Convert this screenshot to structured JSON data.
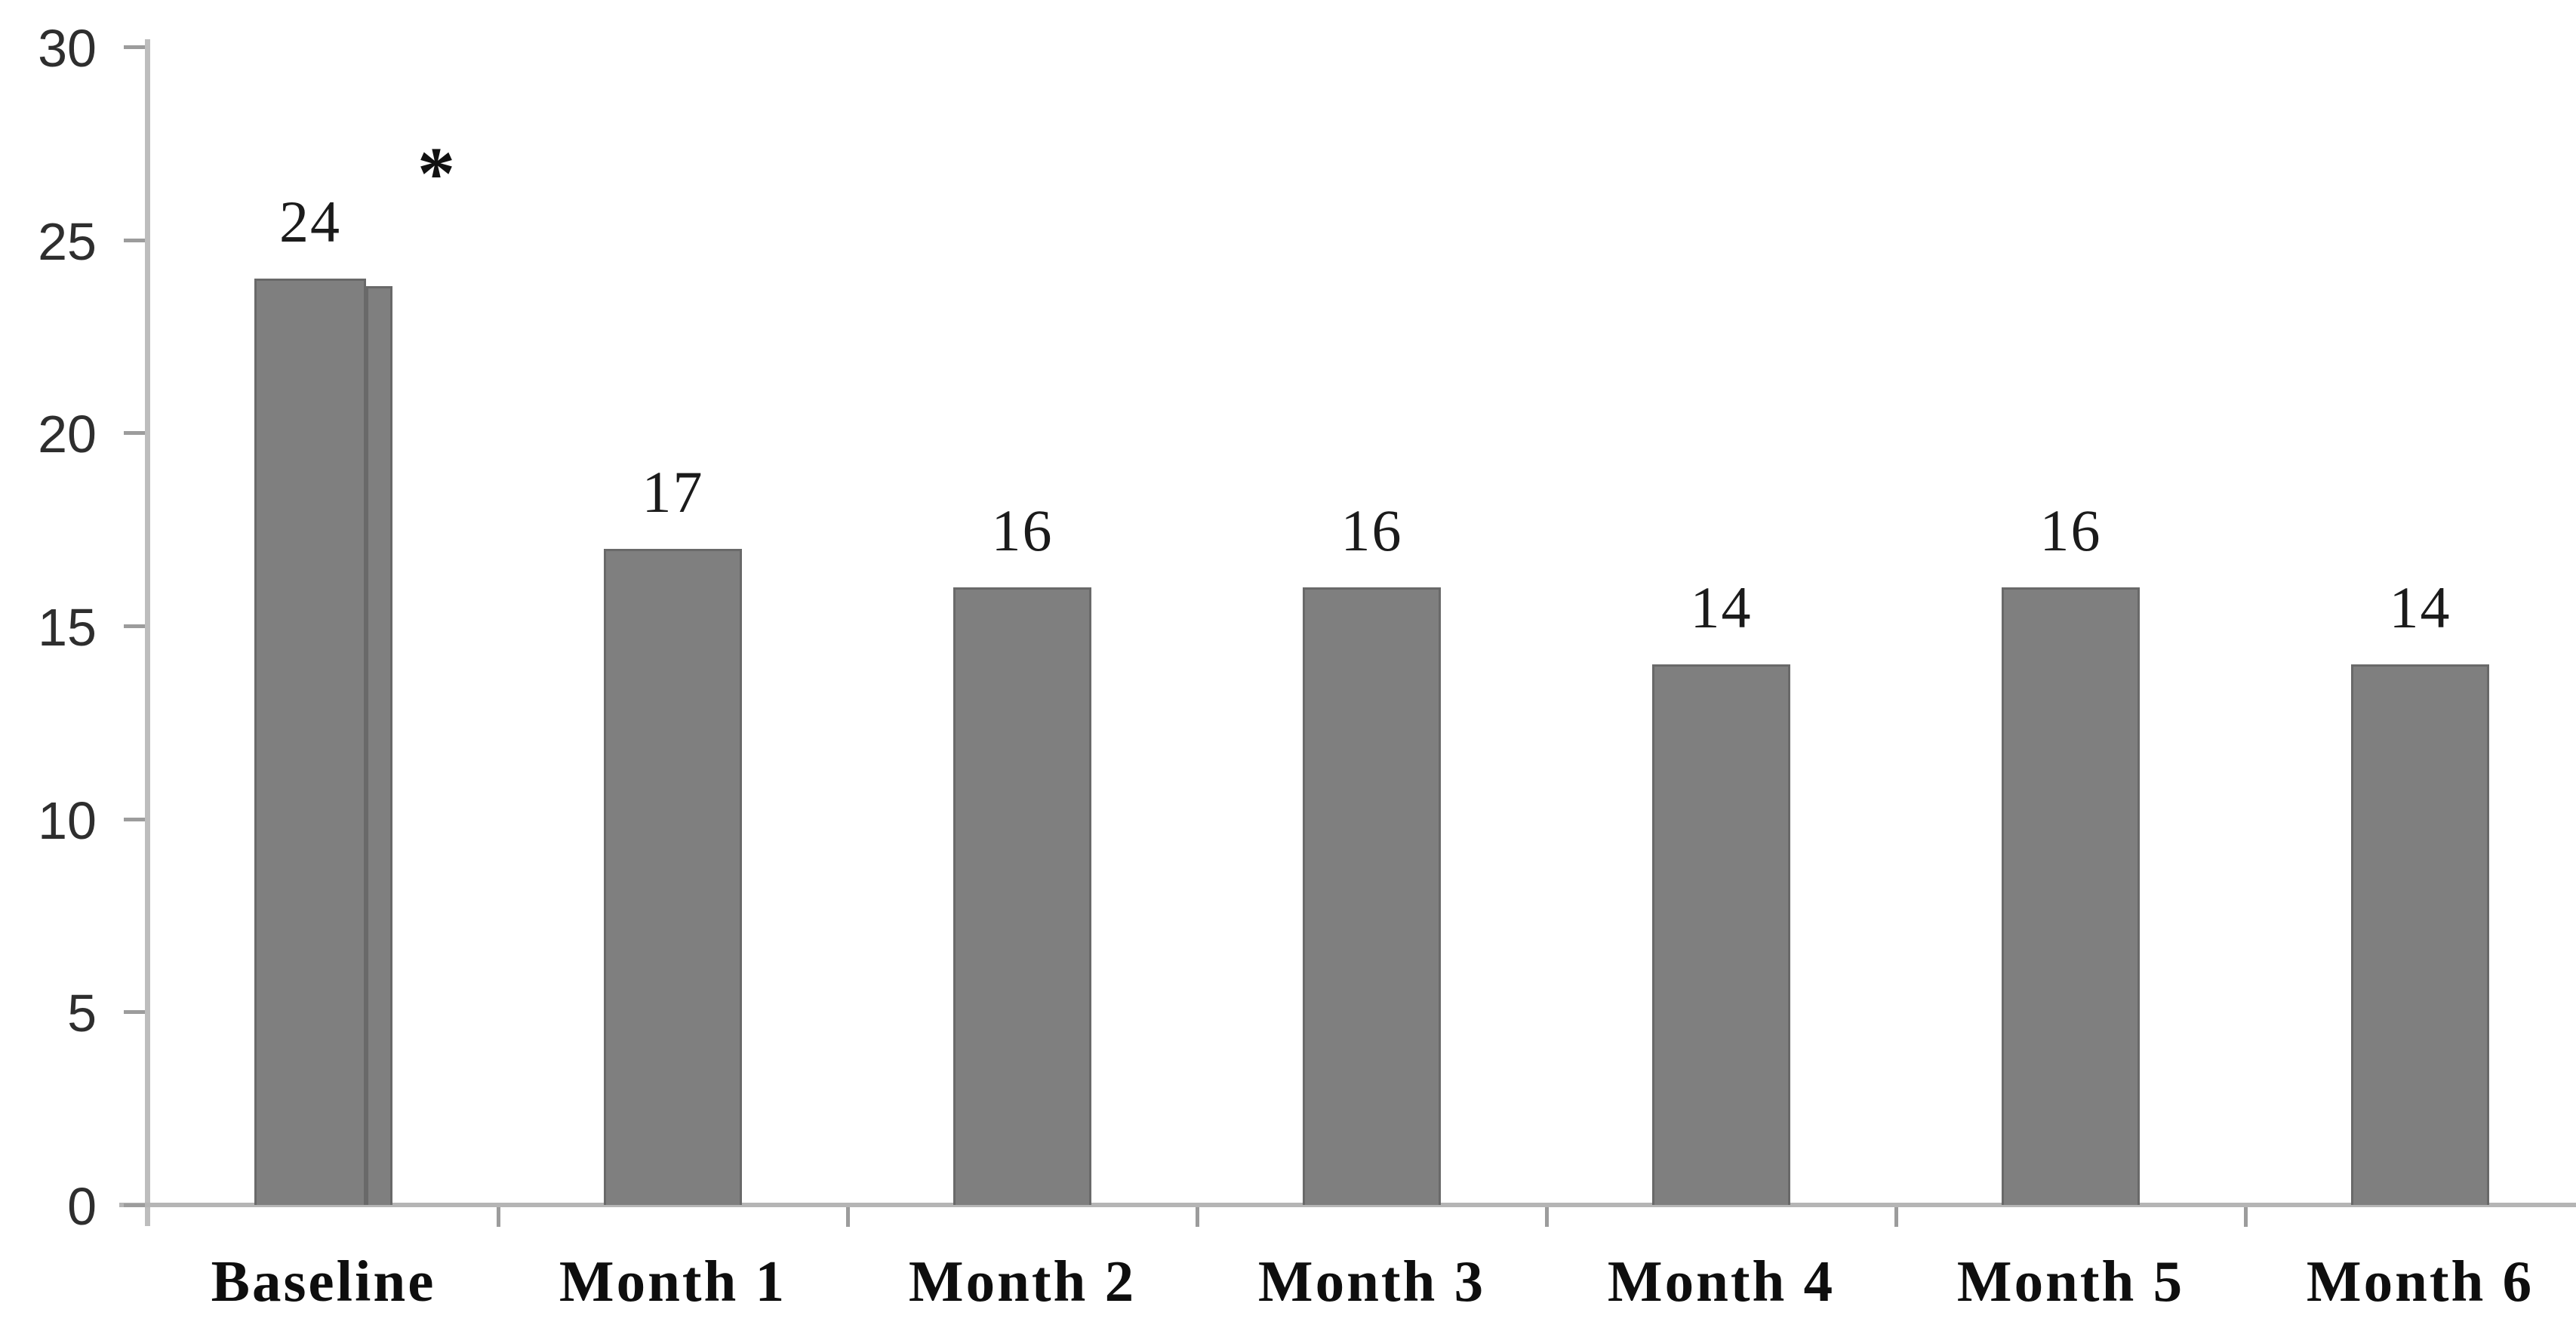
{
  "chart_data": {
    "type": "bar",
    "title": "",
    "xlabel": "",
    "ylabel": "",
    "categories": [
      "Baseline",
      "Month 1",
      "Month 2",
      "Month 3",
      "Month 4",
      "Month 5",
      "Month 6"
    ],
    "values": [
      24,
      17,
      16,
      16,
      14,
      16,
      14
    ],
    "baseline_overlay": {
      "category_index": 0,
      "value": 23.8
    },
    "annotation": {
      "text": "*",
      "category_index": 0
    },
    "y_axis": {
      "min": 0,
      "max": 30,
      "tick_step": 5,
      "tick_labels": [
        "30",
        "25",
        "20",
        "15",
        "10",
        "5",
        "0"
      ]
    },
    "grid": "off",
    "legend": "none",
    "colors": {
      "bar_fill": "#7f7f7f",
      "bar_edge": "#696969",
      "axis_line": "#b5b5b5",
      "tick_mark": "#9c9c9c",
      "label_text": "#1b1b1b"
    }
  }
}
